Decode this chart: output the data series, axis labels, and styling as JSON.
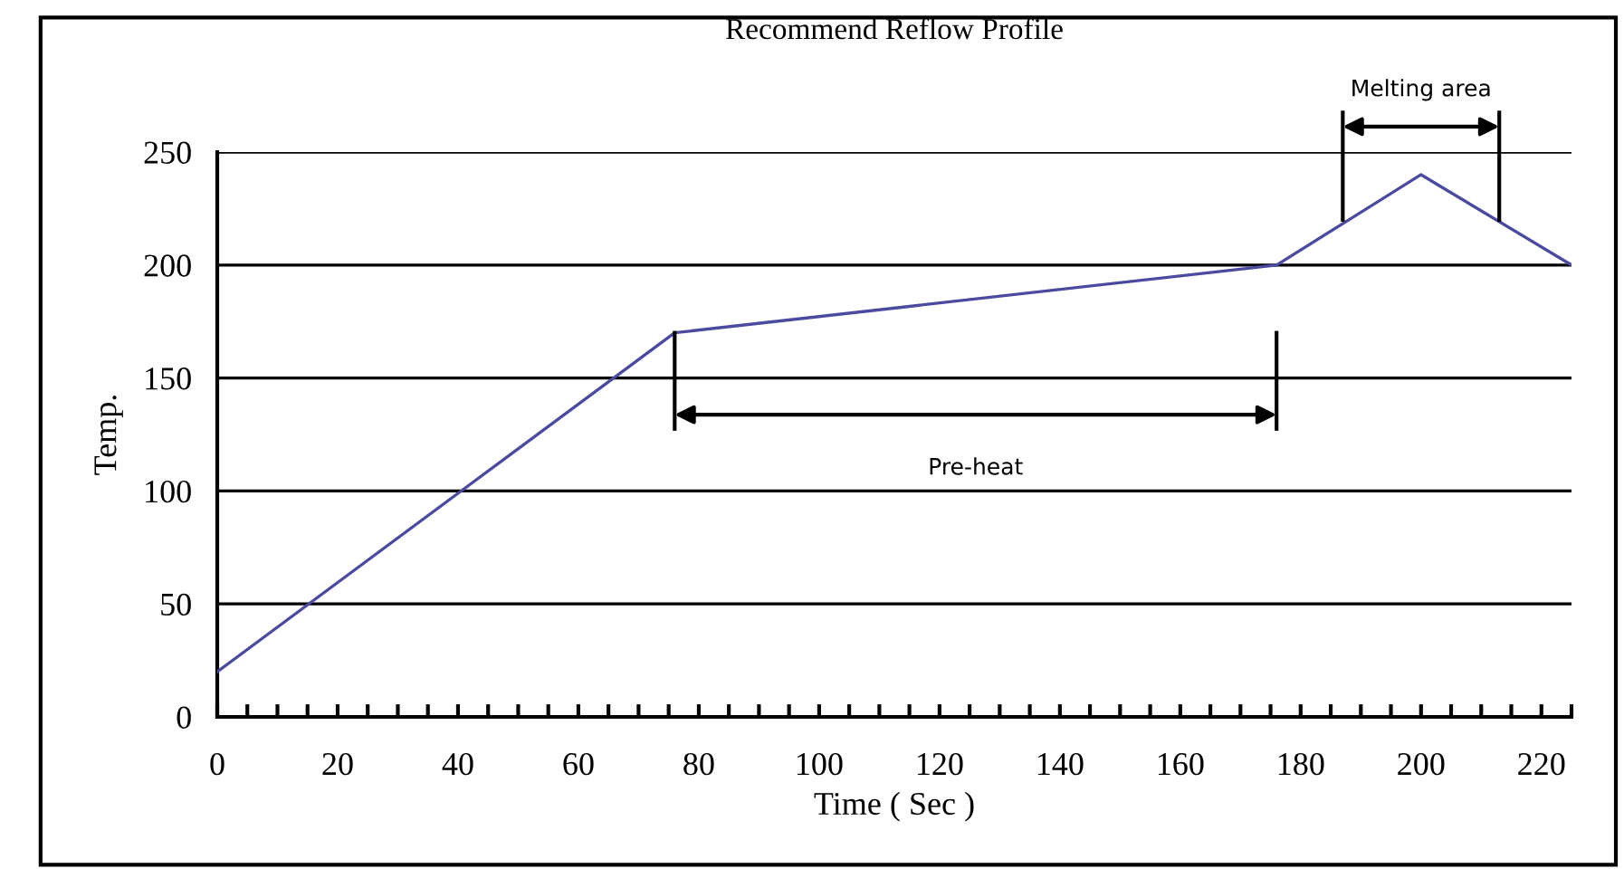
{
  "chart_data": {
    "type": "line",
    "title": "Recommend Reflow Profile",
    "xlabel": "Time ( Sec )",
    "ylabel": "Temp.",
    "x": [
      0,
      76,
      176,
      200,
      225
    ],
    "series": [
      {
        "color": "#4a4aa0",
        "values": [
          20,
          170,
          200,
          240,
          200
        ]
      }
    ],
    "xlim": [
      0,
      225
    ],
    "ylim": [
      0,
      250
    ],
    "xticks": [
      0,
      20,
      40,
      60,
      80,
      100,
      120,
      140,
      160,
      180,
      200,
      220
    ],
    "yticks": [
      0,
      50,
      100,
      150,
      200,
      250
    ],
    "grid": "y",
    "marker": "none",
    "line_style": "solid",
    "annotations": [
      "Pre-heat",
      "Melting area"
    ],
    "ref_lines": [
      {
        "axis": "x",
        "value": 76
      },
      {
        "axis": "x",
        "value": 176
      },
      {
        "axis": "x",
        "value": 187
      },
      {
        "axis": "x",
        "value": 213
      }
    ]
  }
}
